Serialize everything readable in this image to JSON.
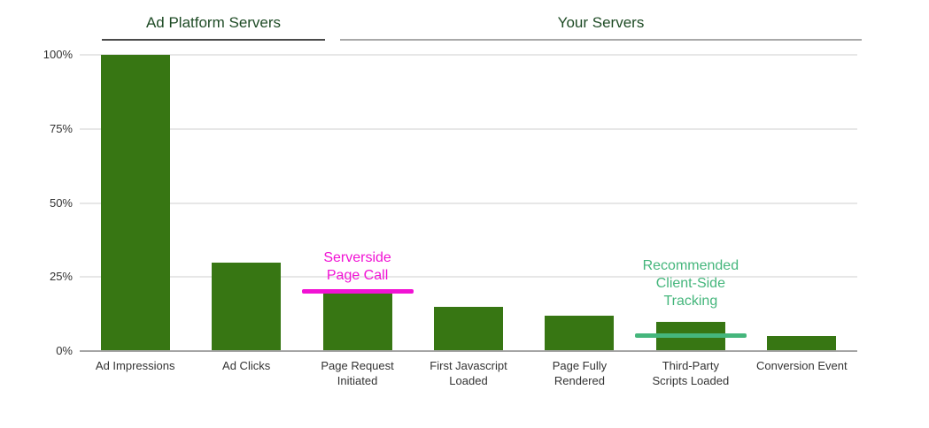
{
  "chart_data": {
    "type": "bar",
    "title": "",
    "xlabel": "",
    "ylabel": "",
    "ylim": [
      0,
      100
    ],
    "grid": true,
    "legend": "none",
    "categories": [
      "Ad Impressions",
      "Ad Clicks",
      "Page Request Initiated",
      "First Javascript Loaded",
      "Page Fully Rendered",
      "Third-Party Scripts Loaded",
      "Conversion Event"
    ],
    "category_label_lines": [
      [
        "Ad Impressions"
      ],
      [
        "Ad Clicks"
      ],
      [
        "Page Request",
        "Initiated"
      ],
      [
        "First Javascript",
        "Loaded"
      ],
      [
        "Page Fully",
        "Rendered"
      ],
      [
        "Third-Party",
        "Scripts Loaded"
      ],
      [
        "Conversion Event"
      ]
    ],
    "values": [
      100,
      30,
      20,
      15,
      12,
      10,
      5
    ],
    "yticks": [
      {
        "value": 0,
        "label": "0%"
      },
      {
        "value": 25,
        "label": "25%"
      },
      {
        "value": 50,
        "label": "50%"
      },
      {
        "value": 75,
        "label": "75%"
      },
      {
        "value": 100,
        "label": "100%"
      }
    ],
    "bar_color": "#377613",
    "gridline_color": "#E7E7E7",
    "baseline_color": "#A5A5A5",
    "axis_text_color": "#333333",
    "groups": [
      {
        "label": "Ad Platform Servers",
        "from": 0,
        "to": 1,
        "title_color": "#1E4B25",
        "underline_color": "#4A4A4A"
      },
      {
        "label": "Your Servers",
        "from": 2,
        "to": 6,
        "title_color": "#1E4B25",
        "underline_color": "#A9A9A9"
      }
    ],
    "annotations": [
      {
        "lines": [
          "Serverside",
          "Page Call"
        ],
        "text": "Serverside Page Call",
        "color": "#F112D4",
        "category_index": 2,
        "line_value": 21
      },
      {
        "lines": [
          "Recommended",
          "Client-Side",
          "Tracking"
        ],
        "text": "Recommended Client-Side Tracking",
        "color": "#45B67C",
        "category_index": 5,
        "line_value": 6
      }
    ]
  }
}
